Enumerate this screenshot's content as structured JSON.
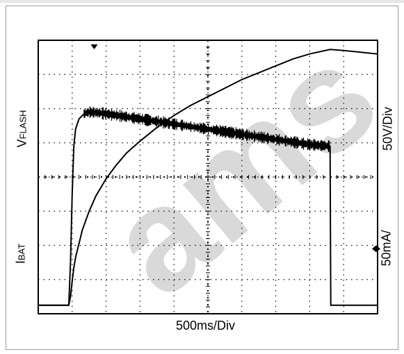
{
  "chart_data": {
    "type": "line",
    "xlabel": "500ms/Div",
    "ylabel_top": {
      "main": "V",
      "sub": "FLASH"
    },
    "ylabel_bottom": {
      "main": "I",
      "sub": "BAT"
    },
    "right_label_top": "50V/Div",
    "right_label_bottom": "50mA/",
    "x_divisions": 10,
    "y_divisions": 8,
    "xlim": [
      0,
      10
    ],
    "ylim": [
      0,
      8
    ],
    "grid": true,
    "watermark": "ams",
    "colors": {
      "trace": "#000000",
      "grid": "#000000",
      "frame": "#000000",
      "watermark": "#d9d9d9"
    },
    "series": [
      {
        "x": [
          0,
          0.9,
          0.95,
          1.0,
          1.05,
          1.1,
          1.2,
          1.3,
          1.5,
          1.7,
          2.0,
          2.3,
          2.6,
          3.0,
          3.5,
          4.0,
          4.5,
          5.0,
          5.5,
          6.0,
          6.5,
          7.0,
          7.5,
          8.0,
          8.6,
          9.0,
          9.5,
          10.0
        ],
        "y": [
          0.25,
          0.25,
          0.5,
          0.95,
          1.35,
          1.65,
          2.05,
          2.45,
          3.0,
          3.45,
          3.95,
          4.35,
          4.7,
          5.05,
          5.45,
          5.8,
          6.1,
          6.35,
          6.6,
          6.85,
          7.05,
          7.25,
          7.45,
          7.6,
          7.73,
          7.7,
          7.65,
          7.6
        ]
      },
      {
        "x": [
          0,
          0.9,
          0.95,
          1.0,
          1.05,
          1.1,
          1.2,
          1.35,
          1.5,
          1.75,
          2.0,
          3.0,
          4.0,
          5.0,
          6.0,
          7.0,
          8.0,
          8.6,
          8.61,
          8.62,
          9.0,
          10.0
        ],
        "y": [
          0.25,
          0.25,
          1.5,
          3.5,
          4.9,
          5.4,
          5.7,
          5.85,
          5.9,
          5.88,
          5.85,
          5.7,
          5.55,
          5.4,
          5.25,
          5.1,
          4.95,
          4.9,
          2.5,
          0.25,
          0.25,
          0.25
        ]
      }
    ],
    "markers": {
      "trigger_x": 1.65,
      "level_y": 1.9
    }
  }
}
